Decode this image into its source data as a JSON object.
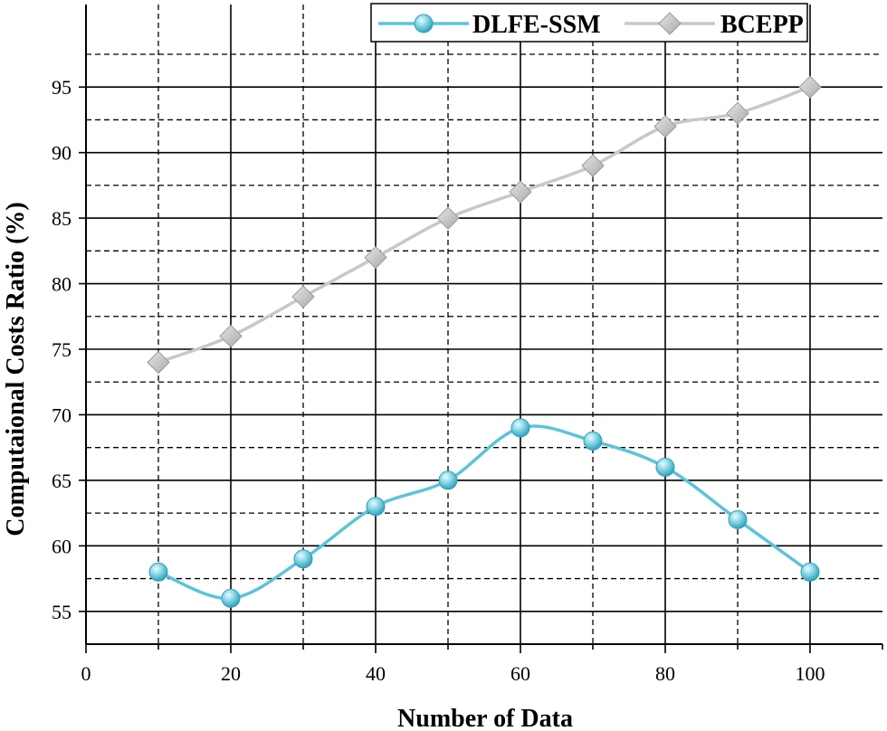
{
  "chart_data": {
    "type": "line",
    "xlabel": "Number of Data",
    "ylabel": "Computaional Costs Ratio (%)",
    "xlim": [
      0,
      110
    ],
    "ylim": [
      52.5,
      97.5
    ],
    "xticks": [
      0,
      20,
      40,
      60,
      80,
      100
    ],
    "yticks": [
      55,
      60,
      65,
      70,
      75,
      80,
      85,
      90,
      95
    ],
    "x": [
      10,
      20,
      30,
      40,
      50,
      60,
      70,
      80,
      90,
      100
    ],
    "grid": "solid major, dashed minor",
    "legend_position": "top-right",
    "series": [
      {
        "name": "DLFE-SSM",
        "marker": "circle",
        "color": "#5cc4d8",
        "values": [
          58,
          56,
          59,
          63,
          65,
          69,
          68,
          66,
          62,
          58
        ]
      },
      {
        "name": "BCEPP",
        "marker": "diamond",
        "color": "#c8c8c8",
        "values": [
          74,
          76,
          79,
          82,
          85,
          87,
          89,
          92,
          93,
          95
        ]
      }
    ]
  }
}
